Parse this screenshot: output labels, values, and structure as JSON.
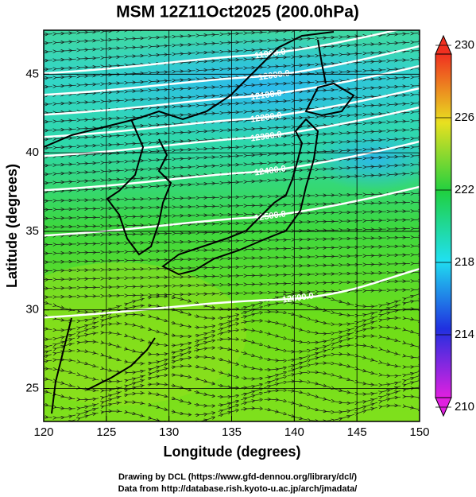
{
  "title": "MSM 12Z11Oct2025 (200.0hPa)",
  "map": {
    "xlabel": "Longitude (degrees)",
    "ylabel": "Latitude  (degrees)",
    "xlim": [
      120,
      150
    ],
    "ylim": [
      22.9,
      47.8
    ],
    "xticks": [
      120,
      125,
      130,
      135,
      140,
      145,
      150
    ],
    "yticks": [
      25,
      30,
      35,
      40,
      45
    ],
    "grid": true,
    "contour_labels": [
      "11900.0",
      "12000.0",
      "12100.0",
      "12200.0",
      "12300.0",
      "12400.0",
      "12500.0",
      "12600.0"
    ]
  },
  "colorbar": {
    "clim": [
      210,
      230
    ],
    "ticks": [
      210,
      214,
      218,
      222,
      226,
      230
    ]
  },
  "footer": [
    "Drawing by DCL (https://www.gfd-dennou.org/library/dcl/)",
    "Data from http://database.rish.kyoto-u.ac.jp/arch/jmadata/"
  ]
}
